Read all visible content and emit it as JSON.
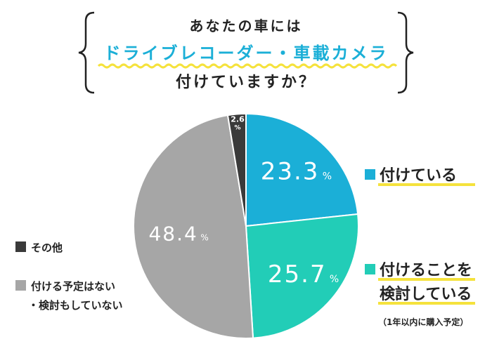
{
  "question": {
    "line1": "あなたの車には",
    "line2": "ドライブレコーダー・車載カメラ",
    "line3": "付けていますか？"
  },
  "chart_data": {
    "type": "pie",
    "title": "あなたの車には ドライブレコーダー・車載カメラ 付けていますか？",
    "slices": [
      {
        "key": "installed",
        "label": "付けている",
        "value": 23.3,
        "value_text": "23.3",
        "unit": "%",
        "color": "#1bafd7"
      },
      {
        "key": "considering",
        "label": "付けることを検討している",
        "label_lines": [
          "付けることを",
          "検討している"
        ],
        "note": "（1年以内に購入予定）",
        "value": 25.7,
        "value_text": "25.7",
        "unit": "%",
        "color": "#22cdb7"
      },
      {
        "key": "not-planned",
        "label": "付ける予定はない・検討もしていない",
        "label_lines": [
          "付ける予定はない",
          "・検討もしていない"
        ],
        "value": 48.4,
        "value_text": "48.4",
        "unit": "%",
        "color": "#a6a6a6"
      },
      {
        "key": "other",
        "label": "その他",
        "value": 2.6,
        "value_text": "2.6",
        "unit": "%",
        "color": "#3a3a3a"
      }
    ]
  },
  "colors": {
    "accent_title": "#1bafd7",
    "wavy_underline": "#f5e23c",
    "text": "#222222",
    "bracket": "#222222"
  }
}
